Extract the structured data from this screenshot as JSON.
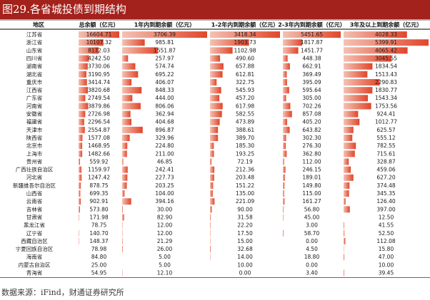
{
  "figure": {
    "title": "图29.各省城投债到期结构",
    "source": "数据来源：iFind，财通证券研究所"
  },
  "colors": {
    "title_bg": "#a4221c",
    "title_text": "#ffffff",
    "bar": "#e0462a",
    "bar_light": "#f4c2b4",
    "header_line": "#333333",
    "row_text": "#1a1a1a"
  },
  "chart_data": {
    "type": "table",
    "title": "图29.各省城投债到期结构",
    "columns": [
      "地区",
      "总余额（亿元）",
      "1年内到期余额（亿元）",
      "1-2年内到期余额（亿元）",
      "2-3年内到期余额（亿元）",
      "3年及以上到期余额（亿元）"
    ],
    "rows": [
      {
        "region": "江苏省",
        "values": [
          "16604.71",
          "3706.39",
          "3418.34",
          "5451.65",
          "4028.33"
        ]
      },
      {
        "region": "浙江省",
        "values": [
          "10107.32",
          "985.81",
          "1903.73",
          "1817.87",
          "5399.91"
        ]
      },
      {
        "region": "山东省",
        "values": [
          "8172.03",
          "1551.87",
          "1102.98",
          "1451.77",
          "4065.42"
        ]
      },
      {
        "region": "四川省",
        "values": [
          "4242.50",
          "257.97",
          "490.60",
          "448.38",
          "3045.55"
        ]
      },
      {
        "region": "湖南省",
        "values": [
          "3730.06",
          "574.74",
          "657.88",
          "662.91",
          "1834.54"
        ]
      },
      {
        "region": "湖北省",
        "values": [
          "3190.95",
          "695.22",
          "612.81",
          "369.49",
          "1513.43"
        ]
      },
      {
        "region": "重庆市",
        "values": [
          "3414.74",
          "406.07",
          "322.75",
          "395.09",
          "2290.83"
        ]
      },
      {
        "region": "江西省",
        "values": [
          "3820.68",
          "848.33",
          "545.93",
          "595.64",
          "1830.77"
        ]
      },
      {
        "region": "广东省",
        "values": [
          "2749.54",
          "444.00",
          "457.20",
          "305.00",
          "1543.34"
        ]
      },
      {
        "region": "河南省",
        "values": [
          "3879.86",
          "806.06",
          "617.98",
          "702.26",
          "1753.56"
        ]
      },
      {
        "region": "安徽省",
        "values": [
          "2726.98",
          "362.94",
          "582.55",
          "857.08",
          "924.41"
        ]
      },
      {
        "region": "福建省",
        "values": [
          "2296.54",
          "404.68",
          "473.89",
          "405.20",
          "1012.77"
        ]
      },
      {
        "region": "天津市",
        "values": [
          "2554.87",
          "896.87",
          "388.61",
          "643.82",
          "625.57"
        ]
      },
      {
        "region": "陕西省",
        "values": [
          "1577.08",
          "329.96",
          "389.70",
          "302.30",
          "555.12"
        ]
      },
      {
        "region": "北京市",
        "values": [
          "1468.95",
          "224.80",
          "185.30",
          "276.30",
          "782.55"
        ]
      },
      {
        "region": "上海市",
        "values": [
          "1482.66",
          "211.00",
          "193.25",
          "362.80",
          "715.61"
        ]
      },
      {
        "region": "贵州省",
        "values": [
          "559.92",
          "46.85",
          "72.19",
          "112.00",
          "328.87"
        ]
      },
      {
        "region": "广西壮族自治区",
        "values": [
          "1159.97",
          "242.41",
          "212.36",
          "246.15",
          "459.06"
        ]
      },
      {
        "region": "河北省",
        "values": [
          "1247.42",
          "227.73",
          "203.48",
          "189.01",
          "627.20"
        ]
      },
      {
        "region": "新疆维吾尔自治区",
        "values": [
          "878.75",
          "203.25",
          "151.22",
          "149.80",
          "374.48"
        ]
      },
      {
        "region": "山西省",
        "values": [
          "699.35",
          "104.00",
          "135.00",
          "115.00",
          "345.35"
        ]
      },
      {
        "region": "云南省",
        "values": [
          "902.91",
          "394.16",
          "221.09",
          "161.27",
          "126.40"
        ]
      },
      {
        "region": "吉林省",
        "values": [
          "573.80",
          "30.00",
          "90.00",
          "56.80",
          "397.00"
        ]
      },
      {
        "region": "甘肃省",
        "values": [
          "171.98",
          "82.90",
          "31.58",
          "45.00",
          "12.50"
        ]
      },
      {
        "region": "黑龙江省",
        "values": [
          "78.75",
          "12.00",
          "22.20",
          "3.00",
          "41.55"
        ]
      },
      {
        "region": "辽宁省",
        "values": [
          "140.70",
          "12.00",
          "17.50",
          "58.70",
          "52.50"
        ]
      },
      {
        "region": "西藏自治区",
        "values": [
          "148.37",
          "21.29",
          "15.00",
          "0.00",
          "112.08"
        ]
      },
      {
        "region": "宁夏回族自治区",
        "values": [
          "78.98",
          "26.00",
          "32.68",
          "4.50",
          "15.80"
        ]
      },
      {
        "region": "海南省",
        "values": [
          "84.80",
          "5.00",
          "14.00",
          "18.80",
          "47.00"
        ]
      },
      {
        "region": "内蒙古自治区",
        "values": [
          "25.00",
          "5.00",
          "10.00",
          "0.00",
          "10.00"
        ]
      },
      {
        "region": "青海省",
        "values": [
          "54.95",
          "12.10",
          "0.00",
          "3.40",
          "39.45"
        ]
      }
    ]
  }
}
